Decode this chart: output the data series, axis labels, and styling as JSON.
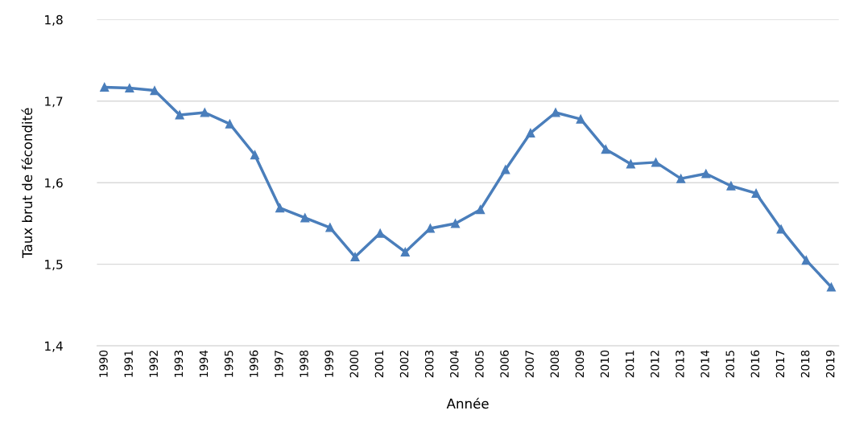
{
  "chart_data": {
    "type": "line",
    "xlabel": "Année",
    "ylabel": "Taux brut de fécondité",
    "categories": [
      "1990",
      "1991",
      "1992",
      "1993",
      "1994",
      "1995",
      "1996",
      "1997",
      "1998",
      "1999",
      "2000",
      "2001",
      "2002",
      "2003",
      "2004",
      "2005",
      "2006",
      "2007",
      "2008",
      "2009",
      "2010",
      "2011",
      "2012",
      "2013",
      "2014",
      "2015",
      "2016",
      "2017",
      "2018",
      "2019"
    ],
    "series": [
      {
        "color": "#4a7ebb",
        "values": [
          1.717,
          1.716,
          1.713,
          1.683,
          1.686,
          1.672,
          1.634,
          1.569,
          1.557,
          1.545,
          1.509,
          1.538,
          1.515,
          1.544,
          1.55,
          1.567,
          1.616,
          1.661,
          1.686,
          1.678,
          1.641,
          1.623,
          1.625,
          1.605,
          1.611,
          1.596,
          1.587,
          1.543,
          1.505,
          1.472
        ]
      }
    ],
    "ylim": [
      1.4,
      1.8
    ],
    "yticks": [
      {
        "value": 1.4,
        "label": "1,4"
      },
      {
        "value": 1.5,
        "label": "1,5"
      },
      {
        "value": 1.6,
        "label": "1,6"
      },
      {
        "value": 1.7,
        "label": "1,7"
      },
      {
        "value": 1.8,
        "label": "1,8"
      }
    ],
    "grid": "y",
    "marker": "triangle",
    "line_style": "solid"
  }
}
